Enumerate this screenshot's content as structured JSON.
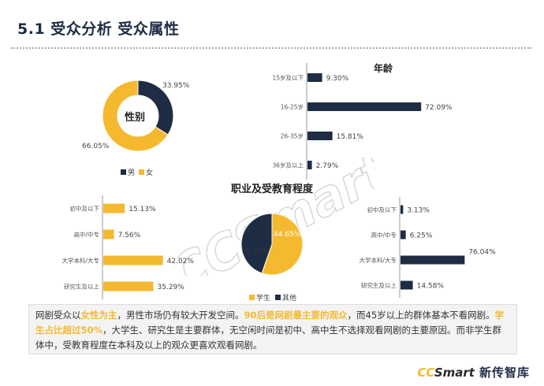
{
  "header": {
    "title": "5.1 受众分析  受众属性"
  },
  "colors": {
    "navy": "#1f2d44",
    "gold": "#f5b930",
    "highlight": "#f5b930"
  },
  "watermark_text": "CCSmart",
  "chart_data": [
    {
      "id": "gender",
      "type": "pie",
      "title": "性别",
      "labels": [
        "男",
        "女"
      ],
      "values": [
        33.95,
        66.05
      ],
      "value_labels": [
        "33.95%",
        "66.05%"
      ],
      "colors": [
        "#1f2d44",
        "#f5b930"
      ],
      "donut": true,
      "legend": "bottom"
    },
    {
      "id": "age",
      "type": "bar",
      "orientation": "horizontal",
      "title": "年龄",
      "categories": [
        "15岁及以下",
        "16-25岁",
        "26-35岁",
        "36岁及以上"
      ],
      "values": [
        9.3,
        72.09,
        15.81,
        2.79
      ],
      "value_labels": [
        "9.30%",
        "72.09%",
        "15.81%",
        "2.79%"
      ],
      "color": "#1f2d44"
    },
    {
      "id": "education-all",
      "type": "bar",
      "orientation": "horizontal",
      "categories": [
        "初中及以下",
        "高中/中专",
        "大学本科/大专",
        "研究生及以上"
      ],
      "values": [
        15.13,
        7.56,
        42.02,
        35.29
      ],
      "value_labels": [
        "15.13%",
        "7.56%",
        "42.02%",
        "35.29%"
      ],
      "color": "#f5b930"
    },
    {
      "id": "occupation",
      "type": "pie",
      "title": "职业及受教育程度",
      "labels": [
        "学生",
        "其他"
      ],
      "values": [
        55.35,
        44.65
      ],
      "value_labels": [
        "55.35%",
        "44.65%"
      ],
      "colors": [
        "#f5b930",
        "#1f2d44"
      ],
      "donut": false,
      "legend": "bottom"
    },
    {
      "id": "education-other",
      "type": "bar",
      "orientation": "horizontal",
      "categories": [
        "初中及以下",
        "高中/中专",
        "大学本科/大专",
        "研究生及以上"
      ],
      "values": [
        3.13,
        6.25,
        76.04,
        14.58
      ],
      "value_labels": [
        "3.13%",
        "6.25%",
        "76.04%",
        "14.58%"
      ],
      "color": "#1f2d44"
    }
  ],
  "summary": {
    "s1": "网剧受众以",
    "h1": "女性为主",
    "s2": "，男性市场仍有较大开发空间。",
    "h2": "90后是网剧最主要的观众",
    "s3": "，而45岁以上的群体基本不看网剧。",
    "h3": "学生占比超过50%",
    "s4": "，大学生、研究生是主要群体，无空闲时间是初中、高中生不选择观看网剧的主要原因。而非学生群体中，受教育程度在本科及以上的观众更喜欢观看网剧。"
  },
  "footer": {
    "logo_cc": "CC",
    "logo_smart": "Smart",
    "logo_cn": "新传智库"
  }
}
